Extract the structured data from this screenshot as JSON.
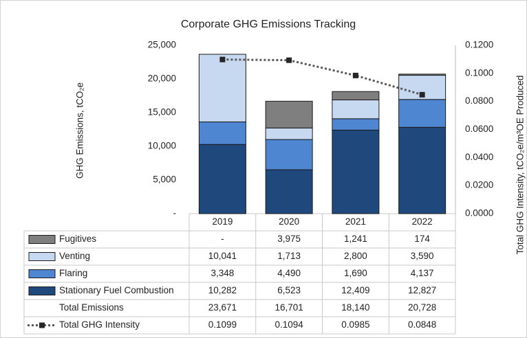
{
  "chart_data": {
    "type": "bar",
    "stacked": true,
    "title": "Corporate GHG Emissions Tracking",
    "y_label": "GHG Emissions, tCO₂e",
    "y2_label": "Total GHG Intensity, tCO₂e/m³OE Produced",
    "categories": [
      "2019",
      "2020",
      "2021",
      "2022"
    ],
    "series": [
      {
        "name": "Fugitives",
        "color": "#7f7f7f",
        "values": [
          0,
          3975,
          1241,
          174
        ],
        "value_labels": [
          "-",
          "3,975",
          "1,241",
          "174"
        ]
      },
      {
        "name": "Venting",
        "color": "#c6d9f1",
        "values": [
          10041,
          1713,
          2800,
          3590
        ],
        "value_labels": [
          "10,041",
          "1,713",
          "2,800",
          "3,590"
        ]
      },
      {
        "name": "Flaring",
        "color": "#4f86d1",
        "values": [
          3348,
          4490,
          1690,
          4137
        ],
        "value_labels": [
          "3,348",
          "4,490",
          "1,690",
          "4,137"
        ]
      },
      {
        "name": "Stationary Fuel Combustion",
        "color": "#1f497d",
        "values": [
          10282,
          6523,
          12409,
          12827
        ],
        "value_labels": [
          "10,282",
          "6,523",
          "12,409",
          "12,827"
        ]
      }
    ],
    "totals": {
      "name": "Total Emissions",
      "values": [
        23671,
        16701,
        18140,
        20728
      ],
      "value_labels": [
        "23,671",
        "16,701",
        "18,140",
        "20,728"
      ]
    },
    "line_series": {
      "name": "Total GHG Intensity",
      "color": "#595959",
      "axis": "y2",
      "values": [
        0.1099,
        0.1094,
        0.0985,
        0.0848
      ]
    },
    "ylim": [
      0,
      25000
    ],
    "yticks": [
      {
        "value": 0,
        "label": "-"
      },
      {
        "value": 5000,
        "label": "5,000"
      },
      {
        "value": 10000,
        "label": "10,000"
      },
      {
        "value": 15000,
        "label": "15,000"
      },
      {
        "value": 20000,
        "label": "20,000"
      },
      {
        "value": 25000,
        "label": "25,000"
      }
    ],
    "y2lim": [
      0,
      0.12
    ],
    "y2ticks": [
      {
        "value": 0,
        "label": "0.0000"
      },
      {
        "value": 0.02,
        "label": "0.0200"
      },
      {
        "value": 0.04,
        "label": "0.0400"
      },
      {
        "value": 0.06,
        "label": "0.0600"
      },
      {
        "value": 0.08,
        "label": "0.0800"
      },
      {
        "value": 0.1,
        "label": "0.1000"
      },
      {
        "value": 0.12,
        "label": "0.1200"
      }
    ]
  }
}
